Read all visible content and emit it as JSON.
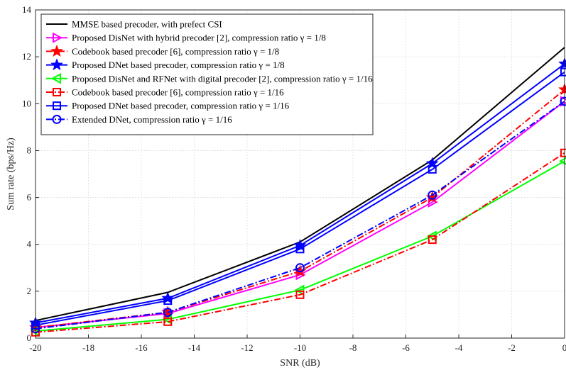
{
  "chart_data": {
    "type": "line",
    "title": "",
    "xlabel": "SNR (dB)",
    "ylabel": "Sum rate (bps/Hz)",
    "xlim": [
      -20,
      0
    ],
    "ylim": [
      0,
      14
    ],
    "xticks": [
      -20,
      -18,
      -16,
      -14,
      -12,
      -10,
      -8,
      -6,
      -4,
      -2,
      0
    ],
    "yticks": [
      0,
      2,
      4,
      6,
      8,
      10,
      12,
      14
    ],
    "grid": true,
    "legend_position": "top-left",
    "x": [
      -20,
      -15,
      -10,
      -5,
      0
    ],
    "series": [
      {
        "name": "MMSE based precoder, with prefect CSI",
        "color": "#000000",
        "dash": "solid",
        "marker": "none",
        "values": [
          0.75,
          1.95,
          4.1,
          7.6,
          12.4
        ]
      },
      {
        "name": "Proposed DisNet with hybrid precoder [2], compression ratio γ = 1/8",
        "color": "#ff00ff",
        "dash": "solid",
        "marker": "triangle-right",
        "values": [
          0.45,
          1.05,
          2.7,
          5.8,
          10.1
        ]
      },
      {
        "name": "Codebook based precoder [6], compression ratio γ = 1/8",
        "color": "#ff0000",
        "dash": "dashdot",
        "marker": "star",
        "values": [
          0.45,
          1.1,
          2.85,
          6.0,
          10.6
        ]
      },
      {
        "name": "Proposed DNet based precoder, compression ratio γ = 1/8",
        "color": "#0000ff",
        "dash": "solid",
        "marker": "star",
        "values": [
          0.65,
          1.7,
          3.95,
          7.45,
          11.7
        ]
      },
      {
        "name": "Proposed DisNet and RFNet with digital precoder [2], compression ratio γ = 1/16",
        "color": "#00ff00",
        "dash": "solid",
        "marker": "triangle-left",
        "values": [
          0.3,
          0.8,
          2.05,
          4.35,
          7.55
        ]
      },
      {
        "name": "Codebook based precoder [6], compression ratio γ = 1/16",
        "color": "#ff0000",
        "dash": "dashdot",
        "marker": "square",
        "values": [
          0.25,
          0.7,
          1.85,
          4.2,
          7.9
        ]
      },
      {
        "name": "Proposed DNet based precoder, compression ratio γ = 1/16",
        "color": "#0000ff",
        "dash": "solid",
        "marker": "square",
        "values": [
          0.55,
          1.6,
          3.8,
          7.2,
          11.35
        ]
      },
      {
        "name": "Extended DNet, compression ratio γ = 1/16",
        "color": "#0000ff",
        "dash": "dashdot",
        "marker": "circle",
        "values": [
          0.4,
          1.1,
          3.0,
          6.1,
          10.1
        ]
      }
    ]
  }
}
